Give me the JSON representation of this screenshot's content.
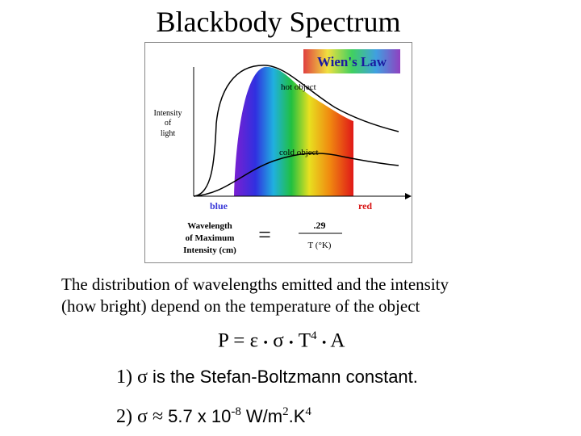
{
  "slide": {
    "title": "Blackbody Spectrum",
    "description_line1": "The distribution of wavelengths emitted and the intensity",
    "description_line2": "(how bright) depend on the temperature of the object",
    "equation": {
      "lhs": "P",
      "equals": "=",
      "epsilon": "ε",
      "dot": "•",
      "sigma": "σ",
      "T": "T",
      "T_exp": "4",
      "A": "A"
    },
    "item1": {
      "prefix": "1)",
      "sigma": "σ",
      "text": "is the Stefan-Boltzmann constant."
    },
    "item2": {
      "prefix": "2)",
      "sigma": "σ",
      "approx": "≈",
      "mantissa": "5.7 x 10",
      "exp1": "-8",
      "unit": "W/m",
      "exp2": "2",
      "unit2": ".K",
      "exp3": "4"
    }
  },
  "figure": {
    "banner": "Wien's Law",
    "ylabel_line1": "Intensity",
    "ylabel_line2": "of",
    "ylabel_line3": "light",
    "hot_label": "hot object",
    "cold_label": "cold object",
    "blue_label": "blue",
    "red_label": "red",
    "law_lhs_line1": "Wavelength",
    "law_lhs_line2": "of Maximum",
    "law_lhs_line3": "Intensity (cm)",
    "law_equals": "=",
    "law_numerator": ".29",
    "law_denominator": "T (°K)",
    "colors": {
      "blue": "#3a3ad8",
      "red": "#d81818",
      "banner_text": "#1a1aa0"
    }
  }
}
